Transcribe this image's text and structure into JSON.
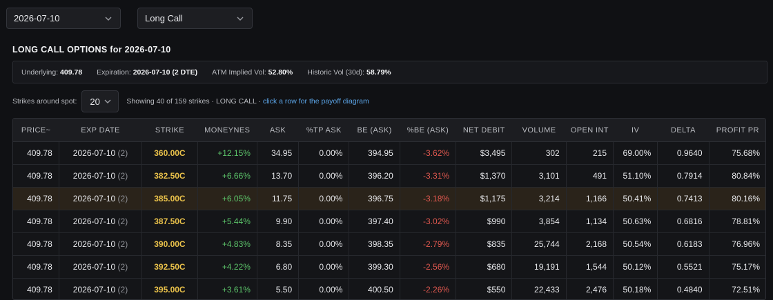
{
  "filters": {
    "date": "2026-07-10",
    "strategy": "Long Call"
  },
  "title": "LONG CALL OPTIONS for 2026-07-10",
  "info": {
    "underlying_label": "Underlying:",
    "underlying_value": "409.78",
    "expiration_label": "Expiration:",
    "expiration_value": "2026-07-10 (2 DTE)",
    "atm_iv_label": "ATM Implied Vol:",
    "atm_iv_value": "52.80%",
    "hist_vol_label": "Historic Vol (30d):",
    "hist_vol_value": "58.79%"
  },
  "controls": {
    "strikes_label": "Strikes around spot:",
    "strikes_value": "20",
    "showing_text": "Showing 40 of 159 strikes · LONG CALL · ",
    "showing_link": "click a row for the payoff diagram"
  },
  "columns": [
    "PRICE~",
    "EXP DATE",
    "STRIKE",
    "MONEYNES",
    "ASK",
    "%TP ASK",
    "BE (ASK)",
    "%BE (ASK)",
    "NET DEBIT",
    "VOLUME",
    "OPEN INT",
    "IV",
    "DELTA",
    "PROFIT PR"
  ],
  "rows": [
    {
      "price": "409.78",
      "exp": "2026-07-10",
      "dte": "(2)",
      "strike": "360.00C",
      "moneyness": "+12.15%",
      "ask": "34.95",
      "tp_ask": "0.00%",
      "be": "394.95",
      "pct_be": "-3.62%",
      "net_debit": "$3,495",
      "volume": "302",
      "open_int": "215",
      "iv": "69.00%",
      "delta": "0.9640",
      "profit_pr": "75.68%",
      "highlighted": false
    },
    {
      "price": "409.78",
      "exp": "2026-07-10",
      "dte": "(2)",
      "strike": "382.50C",
      "moneyness": "+6.66%",
      "ask": "13.70",
      "tp_ask": "0.00%",
      "be": "396.20",
      "pct_be": "-3.31%",
      "net_debit": "$1,370",
      "volume": "3,101",
      "open_int": "491",
      "iv": "51.10%",
      "delta": "0.7914",
      "profit_pr": "80.84%",
      "highlighted": false
    },
    {
      "price": "409.78",
      "exp": "2026-07-10",
      "dte": "(2)",
      "strike": "385.00C",
      "moneyness": "+6.05%",
      "ask": "11.75",
      "tp_ask": "0.00%",
      "be": "396.75",
      "pct_be": "-3.18%",
      "net_debit": "$1,175",
      "volume": "3,214",
      "open_int": "1,166",
      "iv": "50.41%",
      "delta": "0.7413",
      "profit_pr": "80.16%",
      "highlighted": true
    },
    {
      "price": "409.78",
      "exp": "2026-07-10",
      "dte": "(2)",
      "strike": "387.50C",
      "moneyness": "+5.44%",
      "ask": "9.90",
      "tp_ask": "0.00%",
      "be": "397.40",
      "pct_be": "-3.02%",
      "net_debit": "$990",
      "volume": "3,854",
      "open_int": "1,134",
      "iv": "50.63%",
      "delta": "0.6816",
      "profit_pr": "78.81%",
      "highlighted": false
    },
    {
      "price": "409.78",
      "exp": "2026-07-10",
      "dte": "(2)",
      "strike": "390.00C",
      "moneyness": "+4.83%",
      "ask": "8.35",
      "tp_ask": "0.00%",
      "be": "398.35",
      "pct_be": "-2.79%",
      "net_debit": "$835",
      "volume": "25,744",
      "open_int": "2,168",
      "iv": "50.54%",
      "delta": "0.6183",
      "profit_pr": "76.96%",
      "highlighted": false
    },
    {
      "price": "409.78",
      "exp": "2026-07-10",
      "dte": "(2)",
      "strike": "392.50C",
      "moneyness": "+4.22%",
      "ask": "6.80",
      "tp_ask": "0.00%",
      "be": "399.30",
      "pct_be": "-2.56%",
      "net_debit": "$680",
      "volume": "19,191",
      "open_int": "1,544",
      "iv": "50.12%",
      "delta": "0.5521",
      "profit_pr": "75.17%",
      "highlighted": false
    },
    {
      "price": "409.78",
      "exp": "2026-07-10",
      "dte": "(2)",
      "strike": "395.00C",
      "moneyness": "+3.61%",
      "ask": "5.50",
      "tp_ask": "0.00%",
      "be": "400.50",
      "pct_be": "-2.26%",
      "net_debit": "$550",
      "volume": "22,433",
      "open_int": "2,476",
      "iv": "50.18%",
      "delta": "0.4840",
      "profit_pr": "72.51%",
      "highlighted": false
    }
  ],
  "colors": {
    "strike": "#e9c14a",
    "positive": "#5cc46a",
    "negative": "#e0584f",
    "link": "#5ba4e6",
    "highlight_row": "#2a231a"
  },
  "icons": {
    "dropdown": "chevron-down-icon"
  }
}
